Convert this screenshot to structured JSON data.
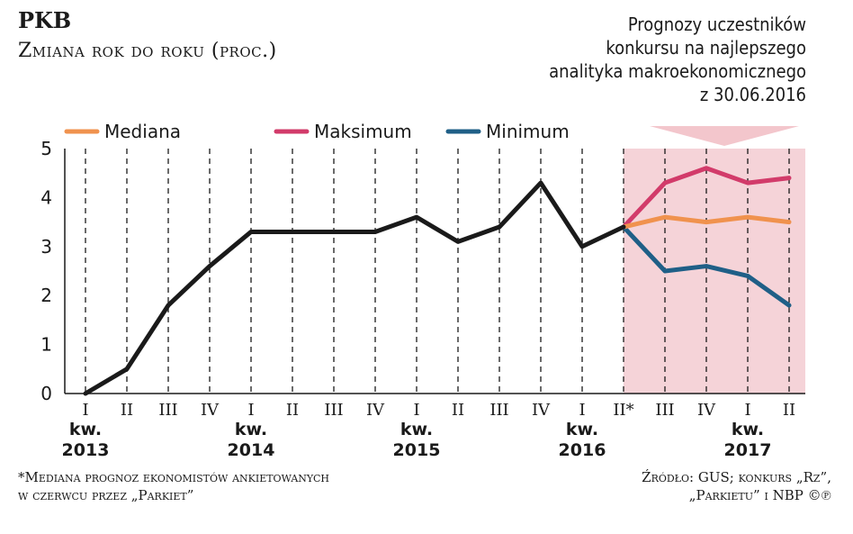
{
  "header": {
    "title": "PKB",
    "subtitle": "Zmiana rok do roku (proc.)"
  },
  "note": {
    "lines": [
      "Prognozy uczestników",
      "konkursu na najlepszego",
      "analityka makroekonomicznego",
      "z 30.06.2016"
    ]
  },
  "footnote": {
    "lines": [
      "*Mediana prognoz ekonomistów ankietowanych",
      "w czerwcu przez „Parkiet”"
    ]
  },
  "source": {
    "lines": [
      "Źródło: GUS; konkurs „Rz”,",
      "„Parkietu” i NBP ©℗"
    ]
  },
  "colors": {
    "actual": "#1a1a1a",
    "mediana": "#f0924e",
    "maksimum": "#d23b6a",
    "minimum": "#1f5f87",
    "forecast_band": "#f5d3d8",
    "arrow": "#f3c6cc"
  },
  "chart_data": {
    "type": "line",
    "title": "PKB",
    "subtitle": "Zmiana rok do roku (proc.)",
    "ylim": [
      0,
      5
    ],
    "yticks": [
      "0",
      "1",
      "2",
      "3",
      "4",
      "5"
    ],
    "x": [
      "I",
      "II",
      "III",
      "IV",
      "I",
      "II",
      "III",
      "IV",
      "I",
      "II",
      "III",
      "IV",
      "I",
      "II*",
      "III",
      "IV",
      "I",
      "II"
    ],
    "year_labels": [
      {
        "index": 0,
        "kw": "kw.",
        "year": "2013"
      },
      {
        "index": 4,
        "kw": "kw.",
        "year": "2014"
      },
      {
        "index": 8,
        "kw": "kw.",
        "year": "2015"
      },
      {
        "index": 12,
        "kw": "kw.",
        "year": "2016"
      },
      {
        "index": 16,
        "kw": "kw.",
        "year": "2017"
      }
    ],
    "forecast_start_index": 13,
    "legend": [
      {
        "key": "mediana",
        "label": "Mediana"
      },
      {
        "key": "maksimum",
        "label": "Maksimum"
      },
      {
        "key": "minimum",
        "label": "Minimum"
      }
    ],
    "series": [
      {
        "key": "actual",
        "values": [
          0.0,
          0.5,
          1.8,
          2.6,
          3.3,
          3.3,
          3.3,
          3.3,
          3.6,
          3.1,
          3.4,
          4.3,
          3.0,
          3.4,
          null,
          null,
          null,
          null
        ]
      },
      {
        "key": "mediana",
        "name": "Mediana",
        "values": [
          null,
          null,
          null,
          null,
          null,
          null,
          null,
          null,
          null,
          null,
          null,
          null,
          null,
          3.4,
          3.6,
          3.5,
          3.6,
          3.5
        ]
      },
      {
        "key": "maksimum",
        "name": "Maksimum",
        "values": [
          null,
          null,
          null,
          null,
          null,
          null,
          null,
          null,
          null,
          null,
          null,
          null,
          null,
          3.4,
          4.3,
          4.6,
          4.3,
          4.4
        ]
      },
      {
        "key": "minimum",
        "name": "Minimum",
        "values": [
          null,
          null,
          null,
          null,
          null,
          null,
          null,
          null,
          null,
          null,
          null,
          null,
          null,
          3.4,
          2.5,
          2.6,
          2.4,
          1.8
        ]
      }
    ],
    "grid": "vertical-dashed"
  }
}
